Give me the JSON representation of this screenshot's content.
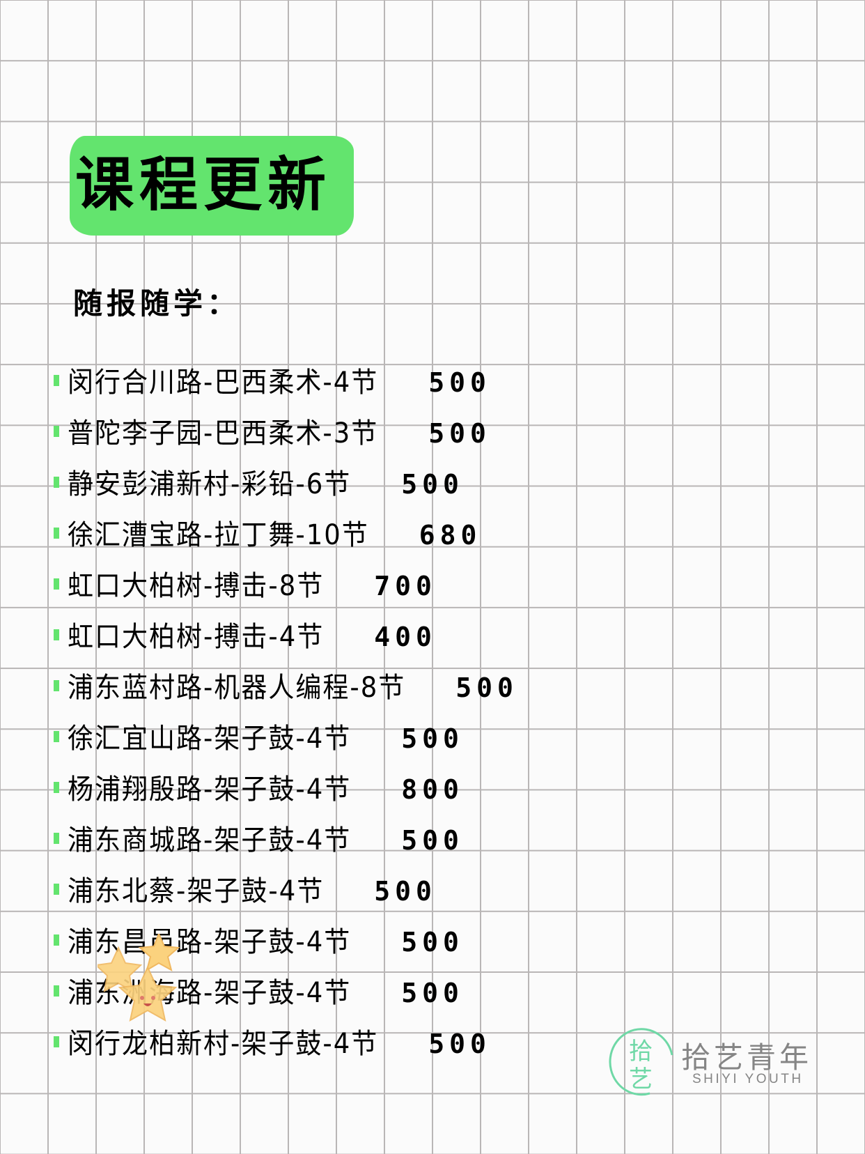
{
  "title": "课程更新",
  "subtitle": "随报随学：",
  "accent_color": "#63e46e",
  "courses": [
    {
      "name": "闵行合川路-巴西柔术-4节",
      "price": "500"
    },
    {
      "name": "普陀李子园-巴西柔术-3节",
      "price": "500"
    },
    {
      "name": "静安彭浦新村-彩铅-6节",
      "price": "500"
    },
    {
      "name": "徐汇漕宝路-拉丁舞-10节",
      "price": "680"
    },
    {
      "name": "虹口大柏树-搏击-8节",
      "price": "700"
    },
    {
      "name": "虹口大柏树-搏击-4节",
      "price": "400"
    },
    {
      "name": "浦东蓝村路-机器人编程-8节",
      "price": "500"
    },
    {
      "name": "徐汇宜山路-架子鼓-4节",
      "price": "500"
    },
    {
      "name": "杨浦翔殷路-架子鼓-4节",
      "price": "800"
    },
    {
      "name": "浦东商城路-架子鼓-4节",
      "price": "500"
    },
    {
      "name": "浦东北蔡-架子鼓-4节",
      "price": "500"
    },
    {
      "name": "浦东昌邑路-架子鼓-4节",
      "price": "500"
    },
    {
      "name": "浦东洲海路-架子鼓-4节",
      "price": "500"
    },
    {
      "name": "闵行龙柏新村-架子鼓-4节",
      "price": "500"
    }
  ],
  "logo": {
    "cn": "拾艺青年",
    "en": "SHIYI YOUTH",
    "mark_text": "拾艺",
    "mark_small": "SHIYI",
    "color": "#6fd8a6"
  }
}
